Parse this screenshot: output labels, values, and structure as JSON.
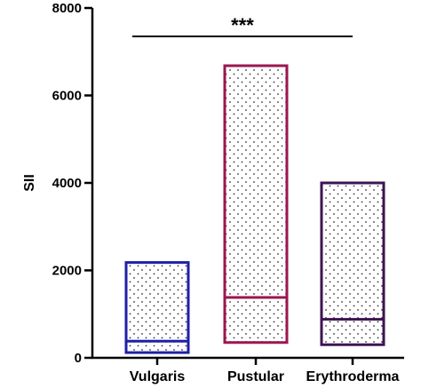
{
  "chart_data": {
    "type": "box",
    "ylabel": "SII",
    "ylim": [
      0,
      8000
    ],
    "yticks": [
      0,
      2000,
      4000,
      6000,
      8000
    ],
    "ytick_labels": [
      "0",
      "2000",
      "4000",
      "6000",
      "8000"
    ],
    "categories": [
      "Vulgaris",
      "Pustular",
      "Erythroderma"
    ],
    "boxes": [
      {
        "category": "Vulgaris",
        "min": 120,
        "median": 380,
        "max": 2180,
        "color": "#1f1fa8"
      },
      {
        "category": "Pustular",
        "min": 350,
        "median": 1380,
        "max": 6680,
        "color": "#9b1650"
      },
      {
        "category": "Erythroderma",
        "min": 300,
        "median": 880,
        "max": 4000,
        "color": "#3d1452"
      }
    ],
    "significance": {
      "label": "***",
      "from": "Vulgaris",
      "to": "Erythroderma",
      "y": 7350
    },
    "grid": false,
    "legend": "none",
    "fill_pattern": "dotted"
  }
}
